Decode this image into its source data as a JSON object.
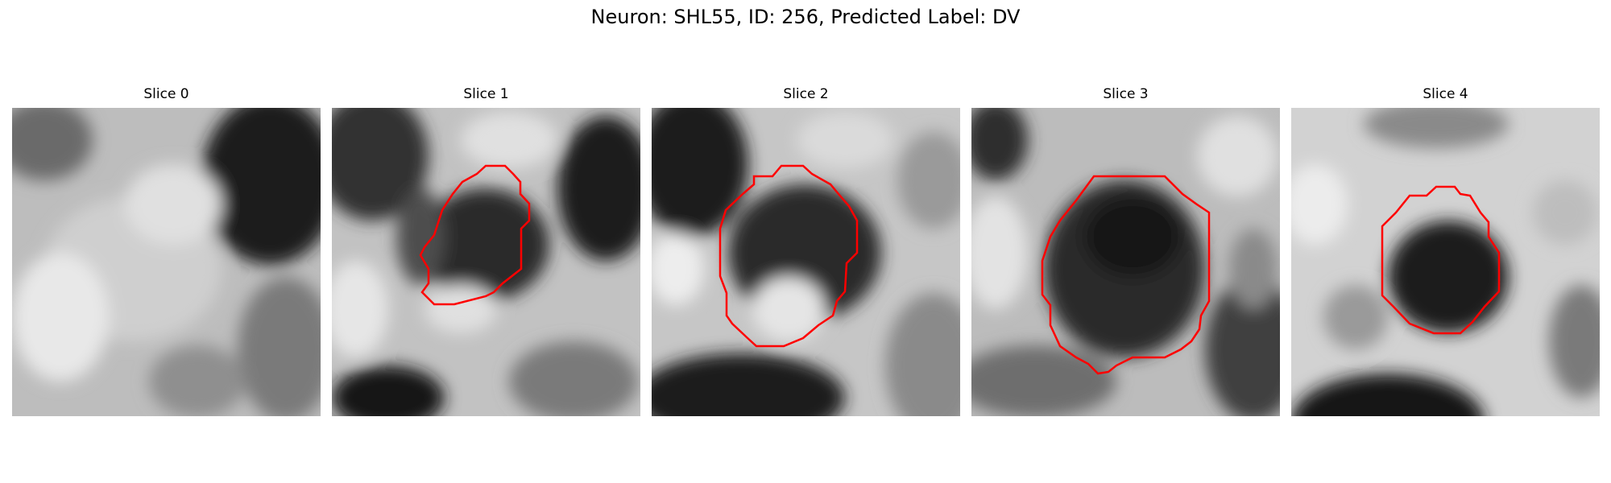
{
  "figure": {
    "title": "Neuron: SHL55, ID: 256, Predicted Label: DV",
    "outline_color": "#ff0000"
  },
  "panels": [
    {
      "title": "Slice 0"
    },
    {
      "title": "Slice 1"
    },
    {
      "title": "Slice 2"
    },
    {
      "title": "Slice 3"
    },
    {
      "title": "Slice 4"
    }
  ]
}
